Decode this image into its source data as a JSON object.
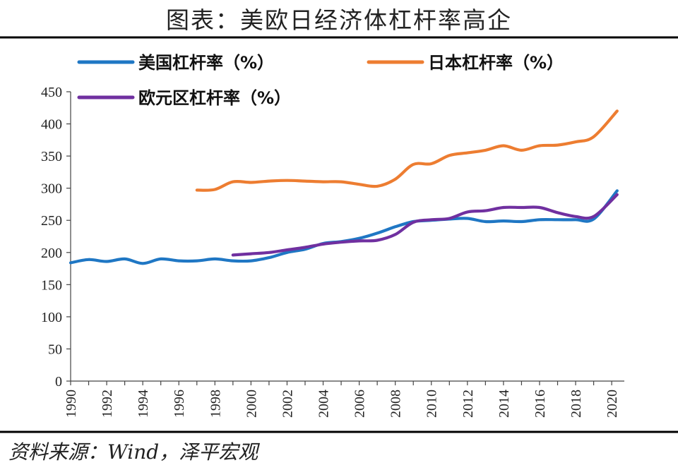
{
  "title": "图表：美欧日经济体杠杆率高企",
  "source": "资料来源：Wind，泽平宏观",
  "chart_data": {
    "type": "line",
    "ylim": [
      0,
      450
    ],
    "yticks": [
      0,
      50,
      100,
      150,
      200,
      250,
      300,
      350,
      400,
      450
    ],
    "xlim": [
      1990,
      2020.7
    ],
    "xticks": [
      "1990",
      "1992",
      "1994",
      "1996",
      "1998",
      "2000",
      "2002",
      "2004",
      "2006",
      "2008",
      "2010",
      "2012",
      "2014",
      "2016",
      "2018",
      "2020"
    ],
    "grid": false,
    "legend": "top",
    "series": [
      {
        "name": "美国杠杆率（%）",
        "color": "#1f77c4",
        "x": [
          1990,
          1991,
          1992,
          1993,
          1994,
          1995,
          1996,
          1997,
          1998,
          1999,
          2000,
          2001,
          2002,
          2003,
          2004,
          2005,
          2006,
          2007,
          2008,
          2009,
          2010,
          2011,
          2012,
          2013,
          2014,
          2015,
          2016,
          2017,
          2018,
          2019,
          2020.3
        ],
        "values": [
          184,
          189,
          186,
          190,
          183,
          190,
          187,
          187,
          190,
          187,
          187,
          192,
          200,
          205,
          214,
          217,
          222,
          230,
          240,
          248,
          250,
          252,
          253,
          248,
          249,
          248,
          251,
          251,
          251,
          252,
          296
        ]
      },
      {
        "name": "日本杠杆率（%）",
        "color": "#ed7d31",
        "x": [
          1997,
          1998,
          1999,
          2000,
          2001,
          2002,
          2003,
          2004,
          2005,
          2006,
          2007,
          2008,
          2009,
          2010,
          2011,
          2012,
          2013,
          2014,
          2015,
          2016,
          2017,
          2018,
          2019,
          2020.3
        ],
        "values": [
          297,
          298,
          310,
          309,
          311,
          312,
          311,
          310,
          310,
          306,
          303,
          314,
          337,
          338,
          351,
          355,
          359,
          366,
          359,
          366,
          367,
          372,
          380,
          420
        ]
      },
      {
        "name": "欧元区杠杆率（%）",
        "color": "#7030a0",
        "x": [
          1999,
          2000,
          2001,
          2002,
          2003,
          2004,
          2005,
          2006,
          2007,
          2008,
          2009,
          2010,
          2011,
          2012,
          2013,
          2014,
          2015,
          2016,
          2017,
          2018,
          2019,
          2020.3
        ],
        "values": [
          196,
          198,
          200,
          204,
          208,
          213,
          216,
          218,
          219,
          228,
          247,
          251,
          253,
          263,
          265,
          270,
          270,
          270,
          262,
          256,
          256,
          290
        ]
      }
    ]
  }
}
